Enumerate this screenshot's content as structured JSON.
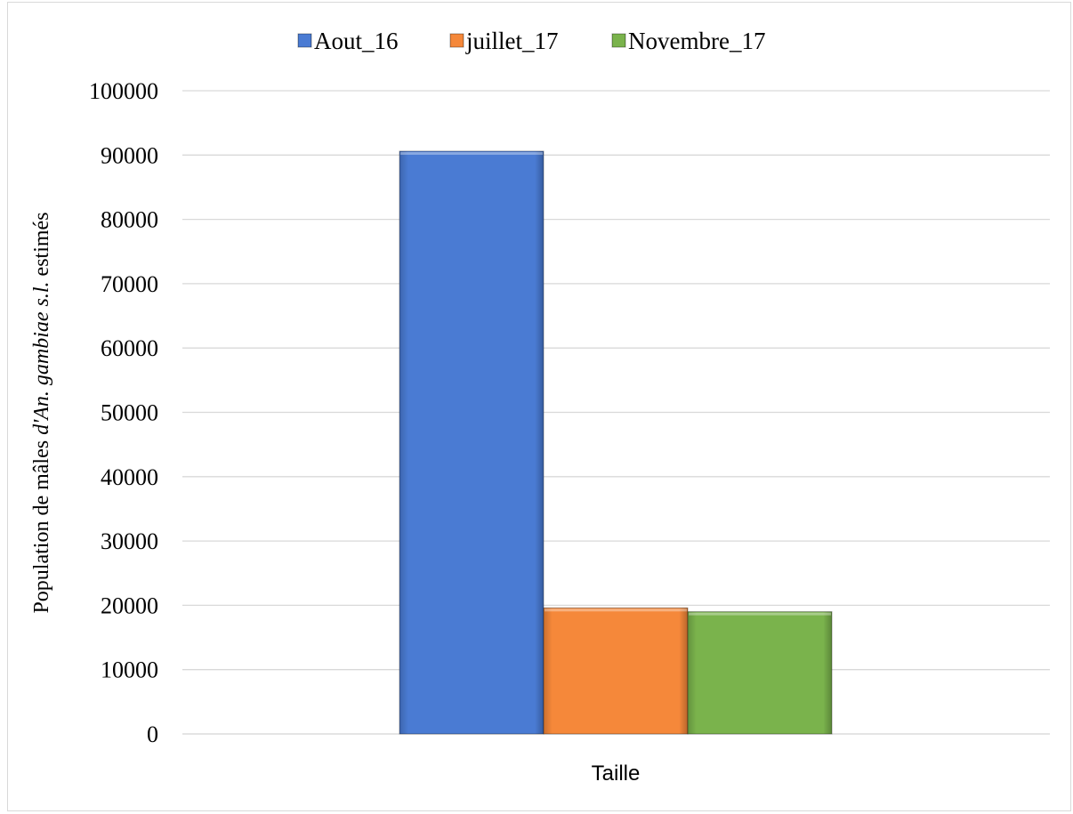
{
  "chart_data": {
    "type": "bar",
    "categories": [
      "Taille"
    ],
    "series": [
      {
        "name": "Aout_16",
        "values": [
          90600
        ],
        "color": "#4a7bd3"
      },
      {
        "name": "juillet_17",
        "values": [
          19600
        ],
        "color": "#f5883a"
      },
      {
        "name": "Novembre_17",
        "values": [
          19000
        ],
        "color": "#7ab34c"
      }
    ],
    "yticks": [
      "0",
      "10000",
      "20000",
      "30000",
      "40000",
      "50000",
      "60000",
      "70000",
      "80000",
      "90000",
      "100000"
    ],
    "ylim": [
      0,
      100000
    ],
    "ylabel_parts": [
      {
        "text": "Population de mâles ",
        "italic": false
      },
      {
        "text": "d'An. gambiae s.l.",
        "italic": true
      },
      {
        "text": " estimés",
        "italic": false
      }
    ],
    "xlabel": "",
    "title": "",
    "grid": true,
    "legend_position": "top"
  }
}
